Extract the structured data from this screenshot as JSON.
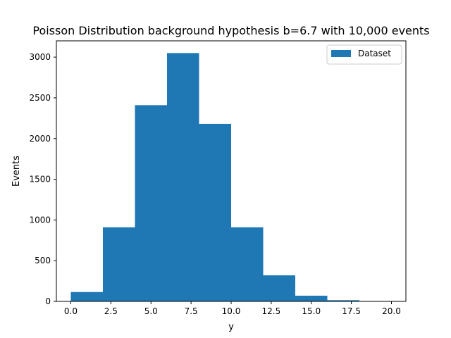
{
  "chart_data": {
    "type": "bar",
    "title": "Poisson Distribution background hypothesis b=6.7 with 10,000 events",
    "xlabel": "y",
    "ylabel": "Events",
    "bin_edges": [
      0,
      2,
      4,
      6,
      8,
      10,
      12,
      14,
      16,
      18,
      20
    ],
    "series": [
      {
        "name": "Dataset",
        "color": "#1f77b4",
        "values": [
          115,
          910,
          2410,
          3050,
          2180,
          910,
          320,
          70,
          15,
          2
        ]
      }
    ],
    "xlim": [
      -0.9,
      20.9
    ],
    "ylim": [
      0,
      3200
    ],
    "x_ticks": [
      0,
      2.5,
      5,
      7.5,
      10,
      12.5,
      15,
      17.5,
      20
    ],
    "x_tick_labels": [
      "0.0",
      "2.5",
      "5.0",
      "7.5",
      "10.0",
      "12.5",
      "15.0",
      "17.5",
      "20.0"
    ],
    "y_ticks": [
      0,
      500,
      1000,
      1500,
      2000,
      2500,
      3000
    ],
    "y_tick_labels": [
      "0",
      "500",
      "1000",
      "1500",
      "2000",
      "2500",
      "3000"
    ],
    "grid": false,
    "legend_position": "top-right"
  }
}
